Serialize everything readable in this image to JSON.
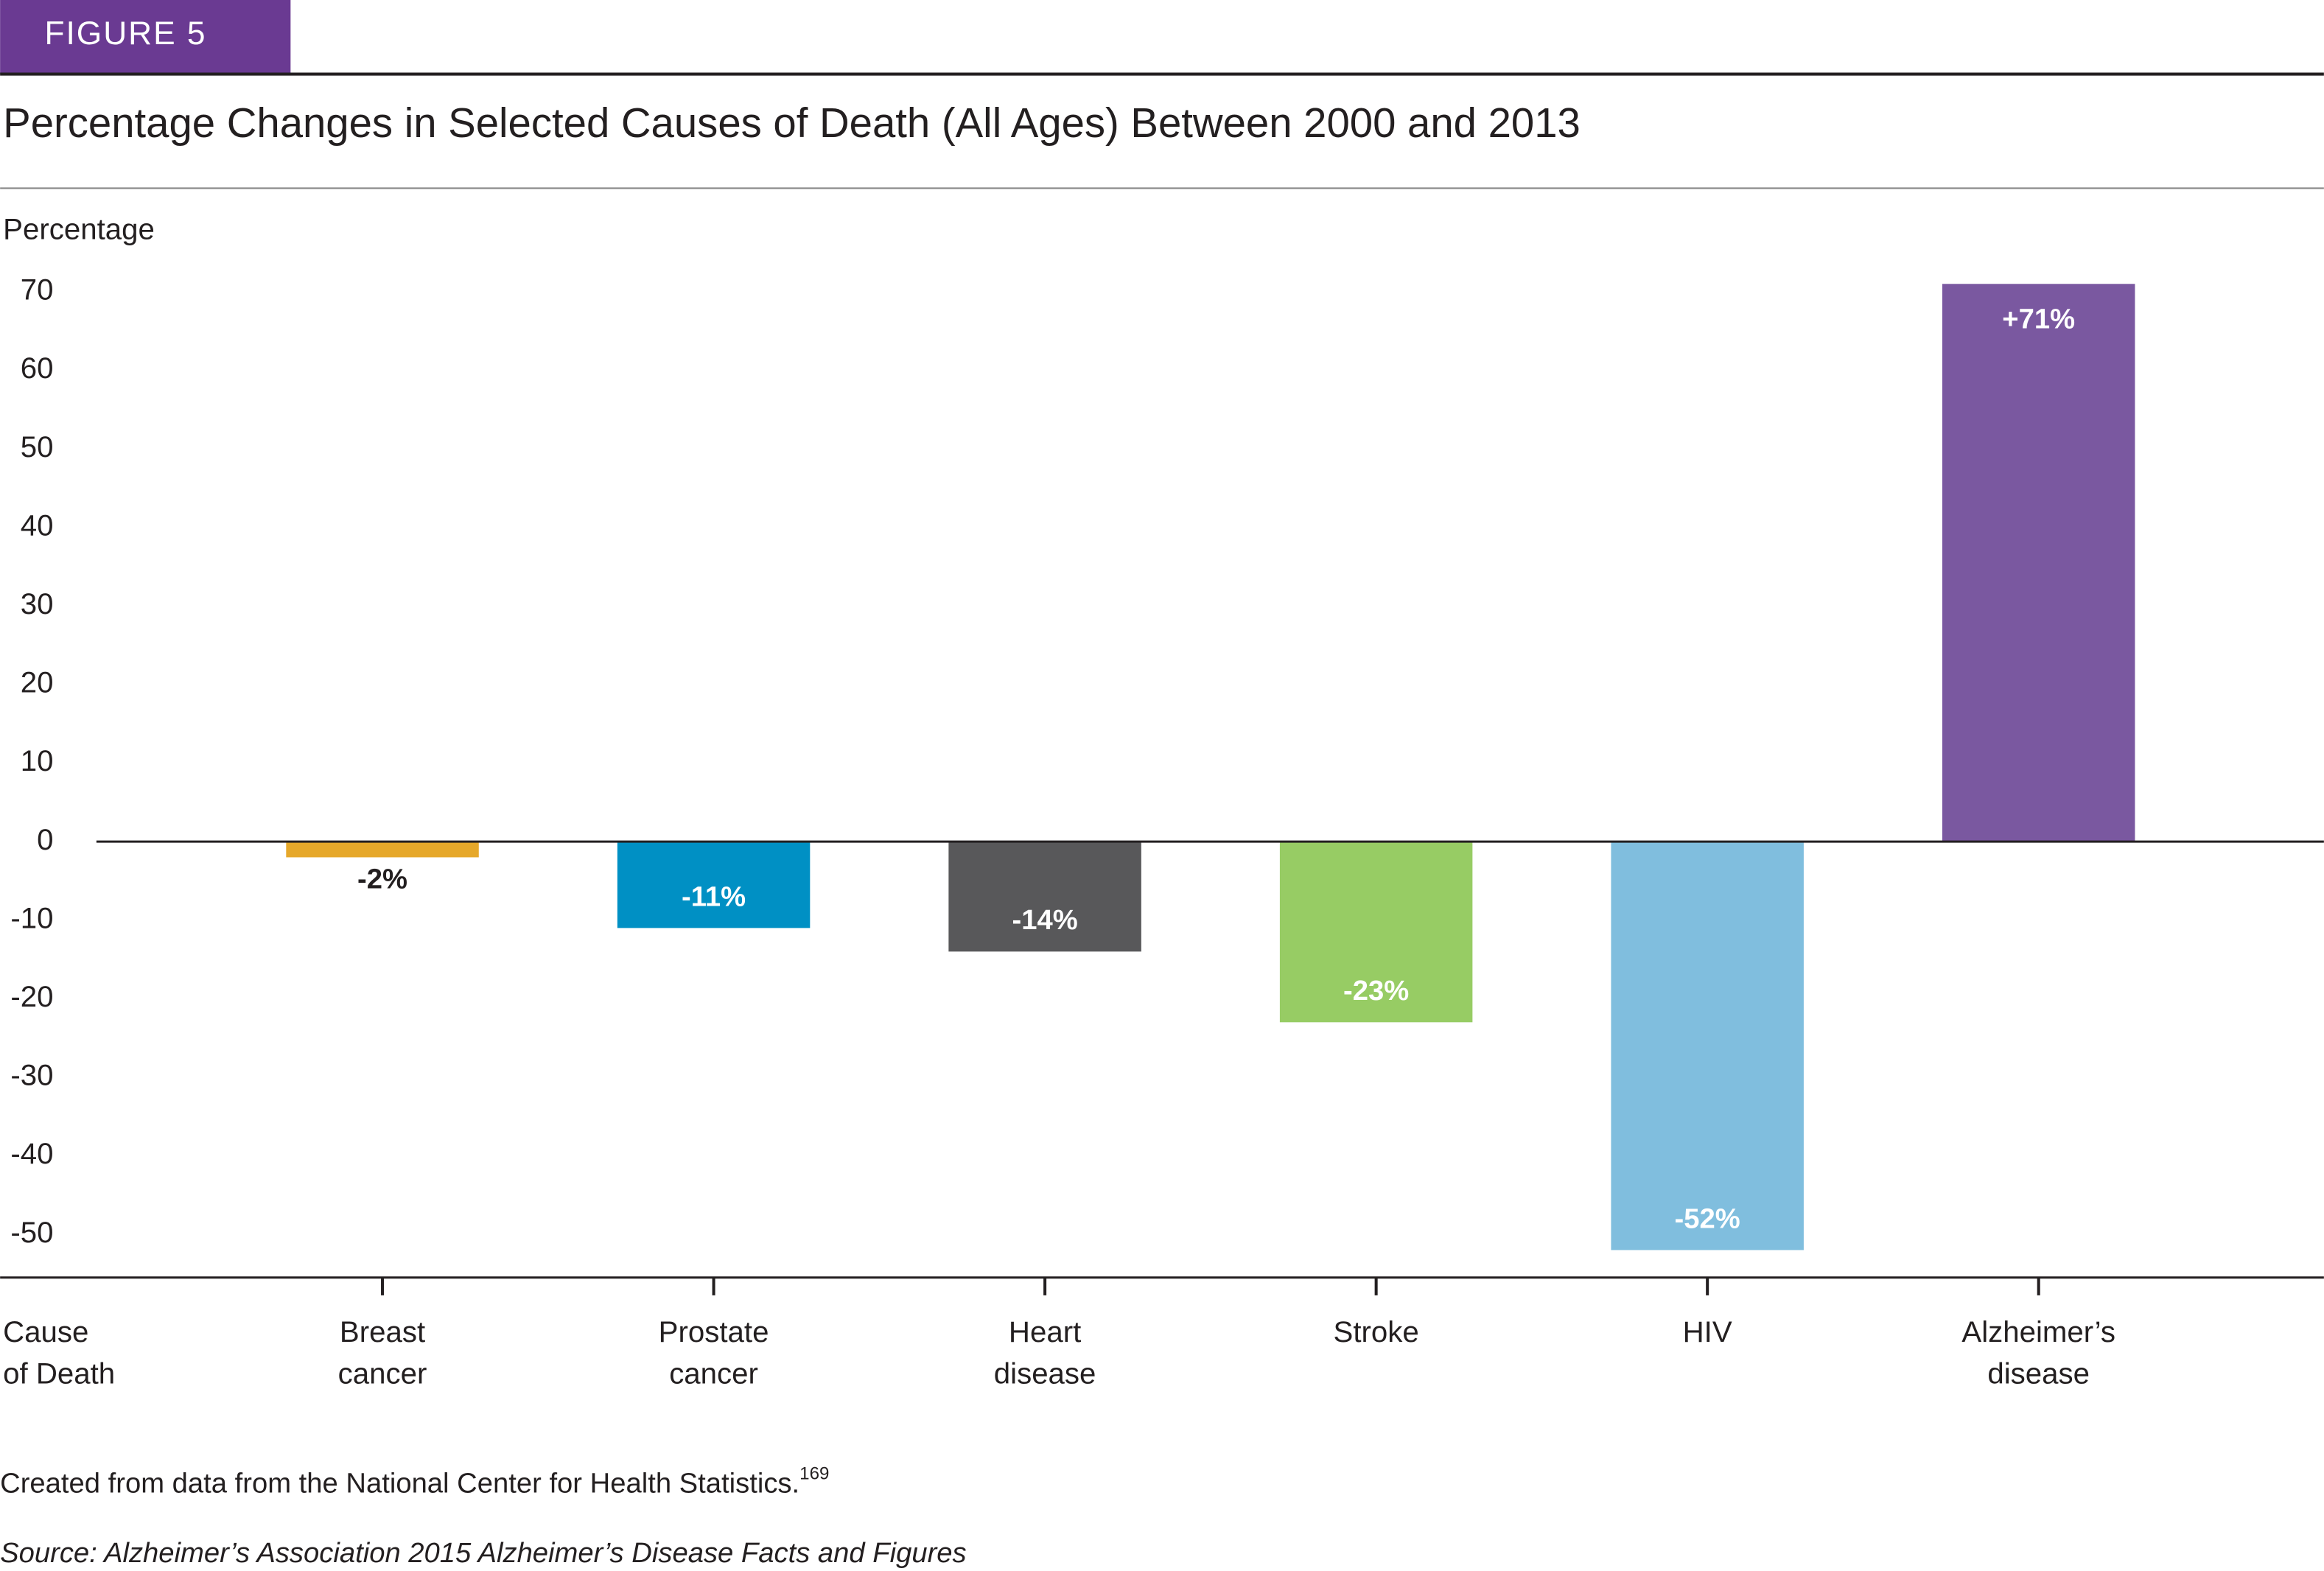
{
  "header": {
    "figure": "FIGURE 5"
  },
  "chart_data": {
    "type": "bar",
    "title": "Percentage Changes in Selected Causes of Death (All Ages) Between 2000 and 2013",
    "y_label": "Percentage",
    "x_label": "Cause of Death",
    "categories": [
      "Breast cancer",
      "Prostate cancer",
      "Heart disease",
      "Stroke",
      "HIV",
      "Alzheimer’s disease"
    ],
    "values": [
      -2,
      -11,
      -14,
      -23,
      -52,
      71
    ],
    "value_labels": [
      "-2%",
      "-11%",
      "-14%",
      "-23%",
      "-52%",
      "+71%"
    ],
    "colors": [
      "#e6a82a",
      "#0090c4",
      "#58585a",
      "#97cc64",
      "#80bede",
      "#7a58a0"
    ],
    "ylim": [
      -55.5,
      75
    ],
    "yticks": [
      -50,
      -40,
      -30,
      -20,
      -10,
      0,
      10,
      20,
      30,
      40,
      50,
      60,
      70
    ]
  },
  "footer": {
    "note": "Created from data from the National Center for Health Statistics.",
    "note_ref": "169",
    "source": "Source: Alzheimer’s Association 2015 Alzheimer’s Disease Facts and Figures"
  }
}
